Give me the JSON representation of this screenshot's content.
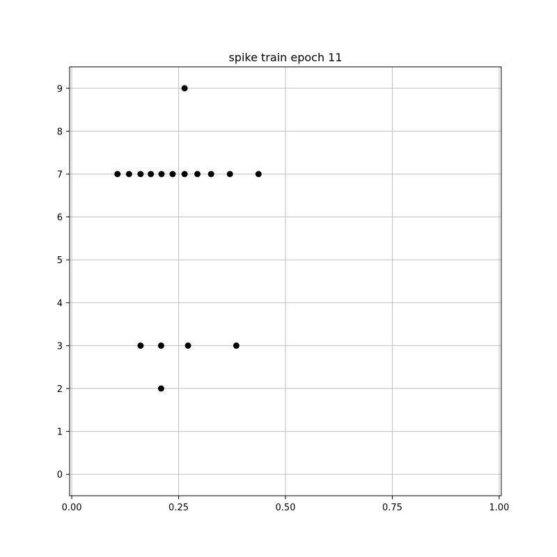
{
  "chart_data": {
    "type": "scatter",
    "title": "spike train epoch 11",
    "xlabel": "",
    "ylabel": "",
    "xlim": [
      -0.005,
      1.005
    ],
    "ylim": [
      -0.5,
      9.5
    ],
    "grid": true,
    "marker_color": "#000000",
    "x_ticks": [
      {
        "value": 0.0,
        "label": "0.00"
      },
      {
        "value": 0.25,
        "label": "0.25"
      },
      {
        "value": 0.5,
        "label": "0.50"
      },
      {
        "value": 0.75,
        "label": "0.75"
      },
      {
        "value": 1.0,
        "label": "1.00"
      }
    ],
    "y_ticks": [
      {
        "value": 0,
        "label": "0"
      },
      {
        "value": 1,
        "label": "1"
      },
      {
        "value": 2,
        "label": "2"
      },
      {
        "value": 3,
        "label": "3"
      },
      {
        "value": 4,
        "label": "4"
      },
      {
        "value": 5,
        "label": "5"
      },
      {
        "value": 6,
        "label": "6"
      },
      {
        "value": 7,
        "label": "7"
      },
      {
        "value": 8,
        "label": "8"
      },
      {
        "value": 9,
        "label": "9"
      }
    ],
    "points": [
      {
        "x": 0.264,
        "y": 9
      },
      {
        "x": 0.107,
        "y": 7
      },
      {
        "x": 0.134,
        "y": 7
      },
      {
        "x": 0.161,
        "y": 7
      },
      {
        "x": 0.185,
        "y": 7
      },
      {
        "x": 0.21,
        "y": 7
      },
      {
        "x": 0.236,
        "y": 7
      },
      {
        "x": 0.264,
        "y": 7
      },
      {
        "x": 0.294,
        "y": 7
      },
      {
        "x": 0.326,
        "y": 7
      },
      {
        "x": 0.37,
        "y": 7
      },
      {
        "x": 0.437,
        "y": 7
      },
      {
        "x": 0.161,
        "y": 3
      },
      {
        "x": 0.209,
        "y": 3
      },
      {
        "x": 0.272,
        "y": 3
      },
      {
        "x": 0.385,
        "y": 3
      },
      {
        "x": 0.209,
        "y": 2
      }
    ]
  }
}
